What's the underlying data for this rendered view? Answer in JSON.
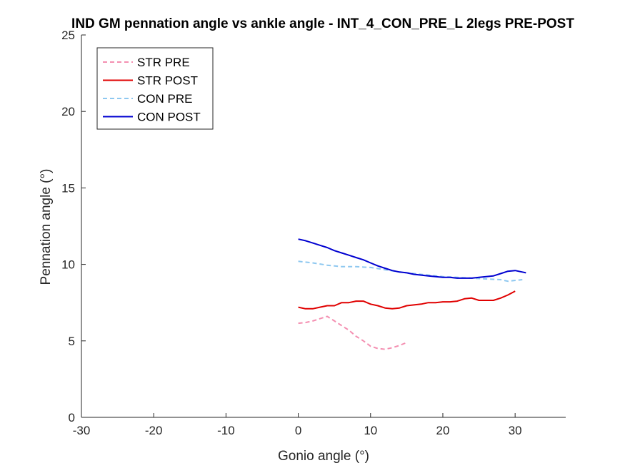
{
  "chart_data": {
    "type": "line",
    "title": "IND GM pennation angle vs ankle angle - INT_4_CON_PRE_L 2legs PRE-POST",
    "xlabel": "Gonio angle (°)",
    "ylabel": "Pennation angle (°)",
    "xlim": [
      -30,
      37
    ],
    "ylim": [
      0,
      25
    ],
    "xticks": [
      -30,
      -20,
      -10,
      0,
      10,
      20,
      30
    ],
    "yticks": [
      0,
      5,
      10,
      15,
      20,
      25
    ],
    "grid": false,
    "legend_position": "top-left",
    "series": [
      {
        "name": "STR PRE",
        "color": "#f48fb1",
        "style": "dashed",
        "x": [
          0,
          1,
          2,
          3,
          4,
          5,
          6,
          7,
          8,
          9,
          10,
          11,
          12,
          13,
          14,
          14.8
        ],
        "y": [
          6.15,
          6.2,
          6.3,
          6.45,
          6.6,
          6.3,
          6.0,
          5.7,
          5.3,
          5.0,
          4.65,
          4.5,
          4.45,
          4.55,
          4.7,
          4.85
        ]
      },
      {
        "name": "STR POST",
        "color": "#e00000",
        "style": "solid",
        "x": [
          0,
          1,
          2,
          3,
          4,
          5,
          6,
          7,
          8,
          9,
          10,
          11,
          12,
          13,
          14,
          15,
          16,
          17,
          18,
          19,
          20,
          21,
          22,
          23,
          24,
          25,
          26,
          27,
          28,
          29,
          30
        ],
        "y": [
          7.2,
          7.1,
          7.1,
          7.2,
          7.3,
          7.3,
          7.5,
          7.5,
          7.6,
          7.6,
          7.4,
          7.3,
          7.15,
          7.1,
          7.15,
          7.3,
          7.35,
          7.4,
          7.5,
          7.5,
          7.55,
          7.55,
          7.6,
          7.75,
          7.8,
          7.65,
          7.65,
          7.65,
          7.8,
          8.0,
          8.25
        ]
      },
      {
        "name": "CON PRE",
        "color": "#8ec8f0",
        "style": "dashed",
        "x": [
          0,
          2,
          4,
          6,
          8,
          10,
          12,
          14,
          16,
          18,
          20,
          22,
          24,
          26,
          28,
          29,
          31
        ],
        "y": [
          10.2,
          10.1,
          9.95,
          9.85,
          9.85,
          9.8,
          9.65,
          9.5,
          9.4,
          9.3,
          9.2,
          9.15,
          9.1,
          9.05,
          9.0,
          8.9,
          9.0
        ]
      },
      {
        "name": "CON POST",
        "color": "#0000d0",
        "style": "solid",
        "x": [
          0,
          1,
          2,
          3,
          4,
          5,
          6,
          7,
          8,
          9,
          10,
          11,
          12,
          13,
          14,
          15,
          16,
          17,
          18,
          19,
          20,
          21,
          22,
          23,
          24,
          25,
          26,
          27,
          28,
          29,
          30,
          31,
          31.5
        ],
        "y": [
          11.65,
          11.55,
          11.4,
          11.25,
          11.1,
          10.9,
          10.75,
          10.6,
          10.45,
          10.3,
          10.1,
          9.9,
          9.75,
          9.6,
          9.5,
          9.45,
          9.35,
          9.3,
          9.25,
          9.2,
          9.15,
          9.15,
          9.1,
          9.1,
          9.1,
          9.15,
          9.2,
          9.25,
          9.4,
          9.55,
          9.6,
          9.5,
          9.45
        ]
      }
    ]
  }
}
